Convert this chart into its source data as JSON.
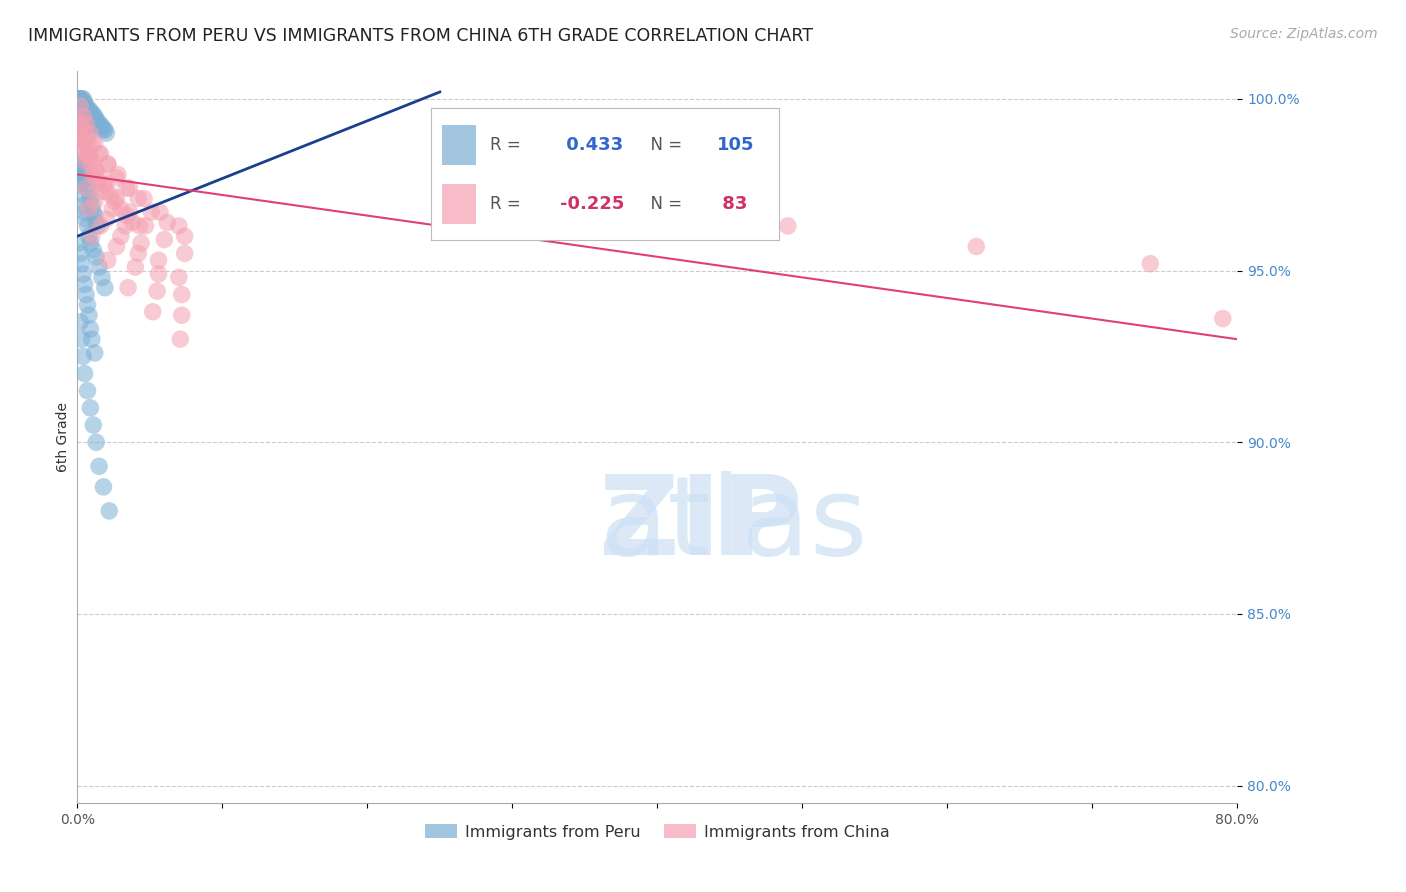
{
  "title": "IMMIGRANTS FROM PERU VS IMMIGRANTS FROM CHINA 6TH GRADE CORRELATION CHART",
  "source": "Source: ZipAtlas.com",
  "ylabel": "6th Grade",
  "xlim": [
    0.0,
    0.8
  ],
  "ylim": [
    0.795,
    1.008
  ],
  "yticks": [
    0.8,
    0.85,
    0.9,
    0.95,
    1.0
  ],
  "ytick_labels": [
    "80.0%",
    "85.0%",
    "90.0%",
    "95.0%",
    "100.0%"
  ],
  "xticks": [
    0.0,
    0.1,
    0.2,
    0.3,
    0.4,
    0.5,
    0.6,
    0.7,
    0.8
  ],
  "xtick_labels": [
    "0.0%",
    "",
    "",
    "",
    "",
    "",
    "",
    "",
    "80.0%"
  ],
  "peru_R": 0.433,
  "peru_N": 105,
  "china_R": -0.225,
  "china_N": 83,
  "blue_color": "#7BAFD4",
  "pink_color": "#F4A0B0",
  "blue_line_color": "#1A3F8F",
  "pink_line_color": "#E04070",
  "legend_label_peru": "Immigrants from Peru",
  "legend_label_china": "Immigrants from China",
  "title_fontsize": 12.5,
  "axis_label_fontsize": 10,
  "tick_fontsize": 10,
  "source_fontsize": 10,
  "peru_scatter_x": [
    0.001,
    0.001,
    0.001,
    0.001,
    0.001,
    0.001,
    0.002,
    0.002,
    0.002,
    0.002,
    0.002,
    0.002,
    0.002,
    0.003,
    0.003,
    0.003,
    0.003,
    0.003,
    0.003,
    0.003,
    0.004,
    0.004,
    0.004,
    0.004,
    0.004,
    0.005,
    0.005,
    0.005,
    0.005,
    0.006,
    0.006,
    0.006,
    0.007,
    0.007,
    0.007,
    0.008,
    0.008,
    0.009,
    0.009,
    0.01,
    0.01,
    0.011,
    0.011,
    0.012,
    0.012,
    0.013,
    0.014,
    0.015,
    0.016,
    0.017,
    0.018,
    0.019,
    0.02,
    0.001,
    0.001,
    0.002,
    0.002,
    0.003,
    0.003,
    0.004,
    0.004,
    0.005,
    0.006,
    0.007,
    0.008,
    0.009,
    0.01,
    0.011,
    0.012,
    0.013,
    0.014,
    0.003,
    0.004,
    0.005,
    0.006,
    0.007,
    0.008,
    0.009,
    0.011,
    0.013,
    0.015,
    0.017,
    0.019,
    0.001,
    0.002,
    0.003,
    0.004,
    0.005,
    0.006,
    0.007,
    0.008,
    0.009,
    0.01,
    0.012,
    0.002,
    0.003,
    0.004,
    0.005,
    0.007,
    0.009,
    0.011,
    0.013,
    0.015,
    0.018,
    0.022
  ],
  "peru_scatter_y": [
    1.0,
    1.0,
    0.998,
    0.996,
    0.994,
    0.99,
    1.0,
    0.998,
    0.996,
    0.994,
    0.992,
    0.99,
    0.988,
    1.0,
    0.999,
    0.997,
    0.995,
    0.993,
    0.991,
    0.989,
    1.0,
    0.998,
    0.996,
    0.994,
    0.992,
    0.999,
    0.997,
    0.995,
    0.993,
    0.998,
    0.996,
    0.994,
    0.997,
    0.995,
    0.993,
    0.997,
    0.994,
    0.996,
    0.993,
    0.996,
    0.993,
    0.995,
    0.992,
    0.995,
    0.992,
    0.994,
    0.993,
    0.993,
    0.992,
    0.992,
    0.991,
    0.991,
    0.99,
    0.98,
    0.976,
    0.979,
    0.975,
    0.981,
    0.977,
    0.982,
    0.978,
    0.98,
    0.977,
    0.975,
    0.973,
    0.971,
    0.969,
    0.967,
    0.966,
    0.964,
    0.963,
    0.972,
    0.969,
    0.967,
    0.965,
    0.963,
    0.96,
    0.958,
    0.956,
    0.954,
    0.951,
    0.948,
    0.945,
    0.958,
    0.955,
    0.952,
    0.949,
    0.946,
    0.943,
    0.94,
    0.937,
    0.933,
    0.93,
    0.926,
    0.935,
    0.93,
    0.925,
    0.92,
    0.915,
    0.91,
    0.905,
    0.9,
    0.893,
    0.887,
    0.88
  ],
  "china_scatter_x": [
    0.002,
    0.003,
    0.004,
    0.005,
    0.006,
    0.007,
    0.008,
    0.009,
    0.01,
    0.012,
    0.014,
    0.016,
    0.018,
    0.02,
    0.023,
    0.026,
    0.03,
    0.034,
    0.038,
    0.043,
    0.002,
    0.004,
    0.006,
    0.009,
    0.012,
    0.016,
    0.021,
    0.027,
    0.034,
    0.042,
    0.051,
    0.062,
    0.074,
    0.003,
    0.006,
    0.01,
    0.015,
    0.021,
    0.028,
    0.036,
    0.046,
    0.057,
    0.07,
    0.004,
    0.008,
    0.013,
    0.019,
    0.027,
    0.036,
    0.047,
    0.06,
    0.074,
    0.005,
    0.01,
    0.016,
    0.024,
    0.033,
    0.044,
    0.056,
    0.07,
    0.006,
    0.012,
    0.02,
    0.03,
    0.042,
    0.056,
    0.072,
    0.008,
    0.016,
    0.027,
    0.04,
    0.055,
    0.072,
    0.01,
    0.021,
    0.035,
    0.052,
    0.071,
    0.35,
    0.49,
    0.62,
    0.74,
    0.79
  ],
  "china_scatter_y": [
    0.992,
    0.99,
    0.988,
    0.986,
    0.984,
    0.988,
    0.985,
    0.983,
    0.981,
    0.979,
    0.976,
    0.977,
    0.975,
    0.973,
    0.972,
    0.97,
    0.968,
    0.966,
    0.964,
    0.963,
    0.998,
    0.995,
    0.993,
    0.99,
    0.987,
    0.984,
    0.981,
    0.977,
    0.974,
    0.971,
    0.967,
    0.964,
    0.96,
    0.993,
    0.99,
    0.987,
    0.984,
    0.981,
    0.978,
    0.974,
    0.971,
    0.967,
    0.963,
    0.987,
    0.983,
    0.979,
    0.975,
    0.971,
    0.967,
    0.963,
    0.959,
    0.955,
    0.982,
    0.978,
    0.973,
    0.968,
    0.963,
    0.958,
    0.953,
    0.948,
    0.974,
    0.97,
    0.965,
    0.96,
    0.955,
    0.949,
    0.943,
    0.968,
    0.963,
    0.957,
    0.951,
    0.944,
    0.937,
    0.96,
    0.953,
    0.945,
    0.938,
    0.93,
    0.97,
    0.963,
    0.957,
    0.952,
    0.936
  ],
  "peru_trend_x": [
    0.0,
    0.25
  ],
  "peru_trend_y": [
    0.96,
    1.002
  ],
  "china_trend_x": [
    0.0,
    0.8
  ],
  "china_trend_y": [
    0.978,
    0.93
  ]
}
